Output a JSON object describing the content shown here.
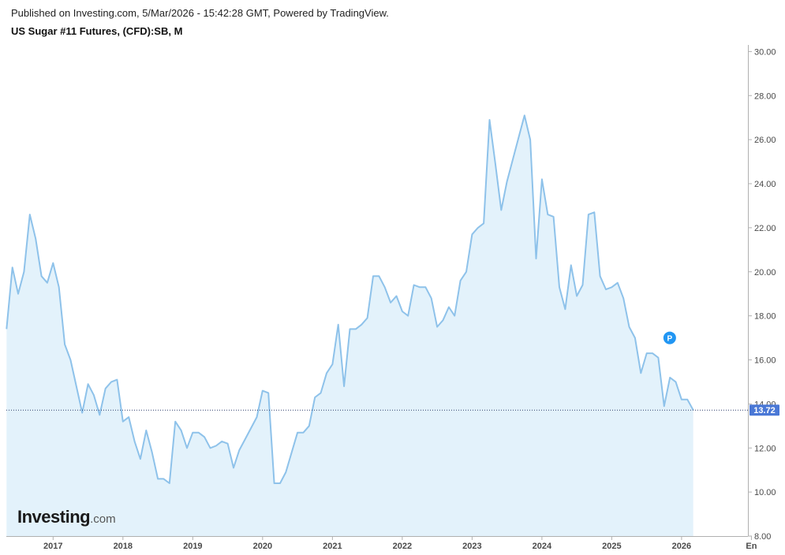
{
  "header": {
    "published": "Published on Investing.com, 5/Mar/2026 - 15:42:28 GMT, Powered by TradingView.",
    "title": "US Sugar #11 Futures, (CFD):SB, M"
  },
  "logo": {
    "main": "Investing",
    "suffix": ".com"
  },
  "colors": {
    "line": "#8ec2ea",
    "fill": "#e3f2fb",
    "badge": "#4a78d6",
    "marker": "#2196f3",
    "axis": "#b0b0b0"
  },
  "chart_data": {
    "type": "area",
    "title": "US Sugar #11 Futures, (CFD):SB, M",
    "xlabel": "",
    "ylabel": "",
    "ylim": [
      8,
      30.3
    ],
    "xlim": [
      2016.33,
      2026.95
    ],
    "y_ticks": [
      8,
      10,
      12,
      14,
      16,
      18,
      20,
      22,
      24,
      26,
      28,
      30
    ],
    "y_tick_labels": [
      "8.00",
      "10.00",
      "12.00",
      "14.00",
      "16.00",
      "18.00",
      "20.00",
      "22.00",
      "24.00",
      "26.00",
      "28.00",
      "30.00"
    ],
    "x_ticks": [
      2017,
      2018,
      2019,
      2020,
      2021,
      2022,
      2023,
      2024,
      2025,
      2026,
      2027
    ],
    "x_tick_labels": [
      "2017",
      "2018",
      "2019",
      "2020",
      "2021",
      "2022",
      "2023",
      "2024",
      "2025",
      "2026",
      "En"
    ],
    "last_value": 13.72,
    "last_value_label": "13.72",
    "marker": {
      "label": "P",
      "x": 2025.83,
      "y": 17.0
    },
    "grid": false,
    "series": [
      {
        "start": "2016-05",
        "frequency": "monthly",
        "values": [
          17.4,
          20.2,
          19.0,
          20.0,
          22.6,
          21.5,
          19.8,
          19.5,
          20.4,
          19.3,
          16.7,
          16.0,
          14.8,
          13.6,
          14.9,
          14.4,
          13.5,
          14.7,
          15.0,
          15.1,
          13.2,
          13.4,
          12.3,
          11.5,
          12.8,
          11.8,
          10.6,
          10.6,
          10.4,
          13.2,
          12.8,
          12.0,
          12.7,
          12.7,
          12.5,
          12.0,
          12.1,
          12.3,
          12.2,
          11.1,
          11.9,
          12.4,
          12.9,
          13.4,
          14.6,
          14.5,
          10.4,
          10.4,
          10.9,
          11.8,
          12.7,
          12.7,
          13.0,
          14.3,
          14.5,
          15.4,
          15.8,
          17.6,
          14.8,
          17.4,
          17.4,
          17.6,
          17.9,
          19.8,
          19.8,
          19.3,
          18.6,
          18.9,
          18.2,
          18.0,
          19.4,
          19.3,
          19.3,
          18.8,
          17.5,
          17.8,
          18.4,
          18.0,
          19.6,
          20.0,
          21.7,
          22.0,
          22.2,
          26.9,
          24.9,
          22.8,
          24.1,
          25.1,
          26.1,
          27.1,
          26.0,
          20.6,
          24.2,
          22.6,
          22.5,
          19.3,
          18.3,
          20.3,
          18.9,
          19.4,
          22.6,
          22.7,
          19.8,
          19.2,
          19.3,
          19.5,
          18.8,
          17.5,
          17.0,
          15.4,
          16.3,
          16.3,
          16.1,
          13.9,
          15.2,
          15.0,
          14.2,
          14.2,
          13.72
        ]
      }
    ]
  }
}
